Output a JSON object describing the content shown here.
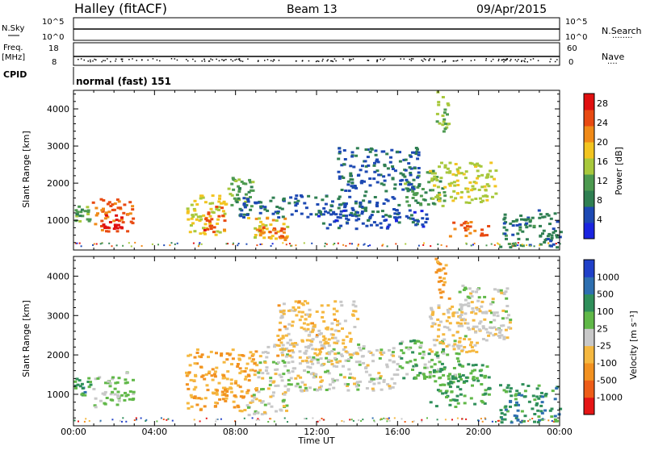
{
  "header": {
    "station": "Halley (fitACF)",
    "beam": "Beam 13",
    "date": "09/Apr/2015"
  },
  "sky_panel": {
    "left_label": "N.Sky",
    "left_ticks": [
      "10^5",
      "10^0"
    ],
    "right_ticks": [
      "10^5",
      "10^0"
    ],
    "right_label": "N.Search",
    "right_dots": "········"
  },
  "freq_panel": {
    "left_label_1": "Freq.",
    "left_label_2": "[MHz]",
    "left_ticks": [
      "18",
      "8"
    ],
    "right_ticks": [
      "60",
      "0"
    ],
    "right_label": "Nave",
    "right_dots": "····"
  },
  "cpid": {
    "label": "CPID",
    "mode": "normal (fast) 151"
  },
  "x_axis": {
    "label": "Time UT",
    "ticks": [
      "00:00",
      "04:00",
      "08:00",
      "12:00",
      "16:00",
      "20:00",
      "00:00"
    ]
  },
  "colors": {
    "power": [
      "#1a24e0",
      "#1d49b3",
      "#2f7f52",
      "#4d9a50",
      "#a8c83c",
      "#f2c420",
      "#f08a18",
      "#e84a12",
      "#e01010"
    ],
    "velocity": [
      "#e51515",
      "#ee5d18",
      "#f29120",
      "#f5b840",
      "#c8c8c8",
      "#60b848",
      "#2f8f5a",
      "#2e6fb0",
      "#2040c8"
    ]
  },
  "chart_data": [
    {
      "type": "heatmap",
      "panel": "power",
      "xlabel": "Time UT",
      "ylabel": "Slant Range [km]",
      "y_ticks": [
        "1000",
        "2000",
        "3000",
        "4000"
      ],
      "ylim": [
        200,
        4500
      ],
      "xlim_hours": [
        0,
        24
      ],
      "colorbar": {
        "label": "Power [dB]",
        "ticks": [
          "4",
          "8",
          "12",
          "16",
          "20",
          "24",
          "28"
        ],
        "range": [
          0,
          30
        ]
      },
      "regions": [
        {
          "x": [
            0.0,
            0.8
          ],
          "y": [
            1000,
            1450
          ],
          "value": 12
        },
        {
          "x": [
            0.9,
            2.9
          ],
          "y": [
            700,
            1600
          ],
          "value": 24
        },
        {
          "x": [
            1.3,
            2.4
          ],
          "y": [
            800,
            1200
          ],
          "value": 29
        },
        {
          "x": [
            5.5,
            7.5
          ],
          "y": [
            600,
            1700
          ],
          "value": 17
        },
        {
          "x": [
            6.4,
            7.4
          ],
          "y": [
            700,
            1400
          ],
          "value": 25
        },
        {
          "x": [
            7.4,
            9.0
          ],
          "y": [
            1400,
            2200
          ],
          "value": 12
        },
        {
          "x": [
            8.5,
            10.5
          ],
          "y": [
            500,
            1100
          ],
          "value": 18
        },
        {
          "x": [
            9.0,
            10.4
          ],
          "y": [
            550,
            850
          ],
          "value": 24
        },
        {
          "x": [
            8.0,
            16.0
          ],
          "y": [
            1100,
            1700
          ],
          "value": 6
        },
        {
          "x": [
            12.0,
            17.5
          ],
          "y": [
            800,
            1300
          ],
          "value": 5
        },
        {
          "x": [
            16.2,
            18.3
          ],
          "y": [
            1400,
            2400
          ],
          "value": 11
        },
        {
          "x": [
            17.5,
            20.8
          ],
          "y": [
            1500,
            2600
          ],
          "value": 16
        },
        {
          "x": [
            18.5,
            20.5
          ],
          "y": [
            600,
            1000
          ],
          "value": 24
        },
        {
          "x": [
            21.0,
            24.0
          ],
          "y": [
            300,
            1300
          ],
          "value": 8
        },
        {
          "x": [
            13.0,
            17.0
          ],
          "y": [
            1800,
            3000
          ],
          "value": 6
        },
        {
          "x": [
            17.8,
            18.5
          ],
          "y": [
            3400,
            4500
          ],
          "value": 14
        }
      ]
    },
    {
      "type": "heatmap",
      "panel": "velocity",
      "xlabel": "Time UT",
      "ylabel": "Slant Range [km]",
      "y_ticks": [
        "1000",
        "2000",
        "3000",
        "4000"
      ],
      "ylim": [
        200,
        4500
      ],
      "xlim_hours": [
        0,
        24
      ],
      "colorbar": {
        "label": "Velocity [m s⁻¹]",
        "ticks": [
          "1000",
          "500",
          "100",
          "25",
          "-25",
          "-100",
          "-500",
          "-1000"
        ],
        "range": [
          -1000,
          1000
        ]
      },
      "regions": [
        {
          "x": [
            0.0,
            0.8
          ],
          "y": [
            1000,
            1450
          ],
          "value": 400
        },
        {
          "x": [
            0.9,
            2.9
          ],
          "y": [
            700,
            1600
          ],
          "value": 150
        },
        {
          "x": [
            5.5,
            9.0
          ],
          "y": [
            600,
            2200
          ],
          "value": -300
        },
        {
          "x": [
            8.5,
            10.5
          ],
          "y": [
            500,
            1100
          ],
          "value": 0
        },
        {
          "x": [
            9.0,
            16.0
          ],
          "y": [
            1100,
            2300
          ],
          "value": 0
        },
        {
          "x": [
            10.0,
            14.0
          ],
          "y": [
            2000,
            3400
          ],
          "value": -200
        },
        {
          "x": [
            16.0,
            19.0
          ],
          "y": [
            1400,
            2400
          ],
          "value": 200
        },
        {
          "x": [
            17.5,
            20.5
          ],
          "y": [
            700,
            1800
          ],
          "value": 350
        },
        {
          "x": [
            17.5,
            20.0
          ],
          "y": [
            2100,
            3300
          ],
          "value": -150
        },
        {
          "x": [
            19.0,
            21.5
          ],
          "y": [
            2400,
            3800
          ],
          "value": 0
        },
        {
          "x": [
            21.0,
            24.0
          ],
          "y": [
            300,
            1300
          ],
          "value": 450
        },
        {
          "x": [
            17.8,
            18.5
          ],
          "y": [
            3400,
            4500
          ],
          "value": -400
        }
      ]
    }
  ]
}
